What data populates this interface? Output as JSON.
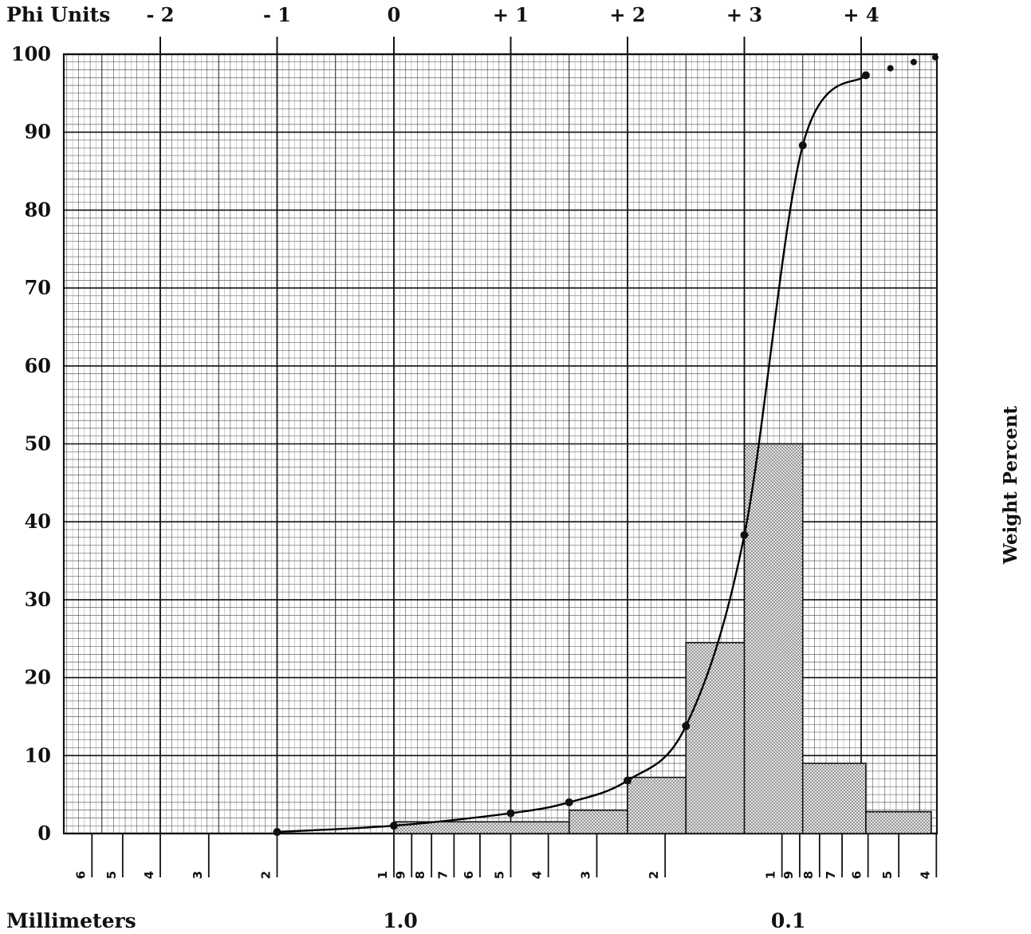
{
  "chart_data": {
    "type": "bar",
    "phi_axis_label": "Phi Units",
    "phi_ticks": [
      {
        "label": "- 2",
        "phi": -2
      },
      {
        "label": "- 1",
        "phi": -1
      },
      {
        "label": "0",
        "phi": 0
      },
      {
        "label": "+ 1",
        "phi": 1
      },
      {
        "label": "+ 2",
        "phi": 2
      },
      {
        "label": "+ 3",
        "phi": 3
      },
      {
        "label": "+ 4",
        "phi": 4
      }
    ],
    "ylabel": "Weight Percent",
    "ylim": [
      0,
      100
    ],
    "yticks": [
      "0",
      "10",
      "20",
      "30",
      "40",
      "50",
      "60",
      "70",
      "80",
      "90",
      "100"
    ],
    "xlabel": "Millimeters",
    "mm_major_labels": [
      {
        "label": "1.0",
        "mm": 1.0
      },
      {
        "label": "0.1",
        "mm": 0.1
      }
    ],
    "mm_ticks": [
      {
        "label": "6",
        "mm": 6
      },
      {
        "label": "5",
        "mm": 5
      },
      {
        "label": "4",
        "mm": 4
      },
      {
        "label": "3",
        "mm": 3
      },
      {
        "label": "2",
        "mm": 2
      },
      {
        "label": "1",
        "mm": 1
      },
      {
        "label": "9",
        "mm": 0.9
      },
      {
        "label": "8",
        "mm": 0.8
      },
      {
        "label": "7",
        "mm": 0.7
      },
      {
        "label": "6",
        "mm": 0.6
      },
      {
        "label": "5",
        "mm": 0.5
      },
      {
        "label": "4",
        "mm": 0.4
      },
      {
        "label": "3",
        "mm": 0.3
      },
      {
        "label": "2",
        "mm": 0.2
      },
      {
        "label": "1",
        "mm": 0.1
      },
      {
        "label": "9",
        "mm": 0.09
      },
      {
        "label": "8",
        "mm": 0.08
      },
      {
        "label": "7",
        "mm": 0.07
      },
      {
        "label": "6",
        "mm": 0.06
      },
      {
        "label": "5",
        "mm": 0.05
      },
      {
        "label": "4",
        "mm": 0.04
      }
    ],
    "histogram": [
      {
        "phi_from": 0.0,
        "phi_to": 1.5,
        "weight_percent": 1.5
      },
      {
        "phi_from": 1.5,
        "phi_to": 2.0,
        "weight_percent": 3.0
      },
      {
        "phi_from": 2.0,
        "phi_to": 2.5,
        "weight_percent": 7.2
      },
      {
        "phi_from": 2.5,
        "phi_to": 3.0,
        "weight_percent": 24.5
      },
      {
        "phi_from": 3.0,
        "phi_to": 3.5,
        "weight_percent": 50.0
      },
      {
        "phi_from": 3.5,
        "phi_to": 4.04,
        "weight_percent": 9.0
      },
      {
        "phi_from": 4.04,
        "phi_to": 4.6,
        "weight_percent": 2.8
      }
    ],
    "cumulative_points": [
      {
        "phi": -1.0,
        "cumulative_percent": 0.2
      },
      {
        "phi": 0.0,
        "cumulative_percent": 1.0
      },
      {
        "phi": 1.0,
        "cumulative_percent": 2.6
      },
      {
        "phi": 1.5,
        "cumulative_percent": 4.0
      },
      {
        "phi": 2.0,
        "cumulative_percent": 6.8
      },
      {
        "phi": 2.5,
        "cumulative_percent": 13.8
      },
      {
        "phi": 3.0,
        "cumulative_percent": 38.3
      },
      {
        "phi": 3.5,
        "cumulative_percent": 88.3
      },
      {
        "phi": 4.04,
        "cumulative_percent": 97.3
      }
    ],
    "extra_points": [
      {
        "phi": 4.25,
        "cumulative_percent": 98.2
      },
      {
        "phi": 4.45,
        "cumulative_percent": 99.0
      },
      {
        "phi": 4.65,
        "cumulative_percent": 99.6
      }
    ],
    "grid": true,
    "colors": {
      "grid": "#111111",
      "bar_fill": "#d0d0d0",
      "curve": "#000000"
    }
  }
}
